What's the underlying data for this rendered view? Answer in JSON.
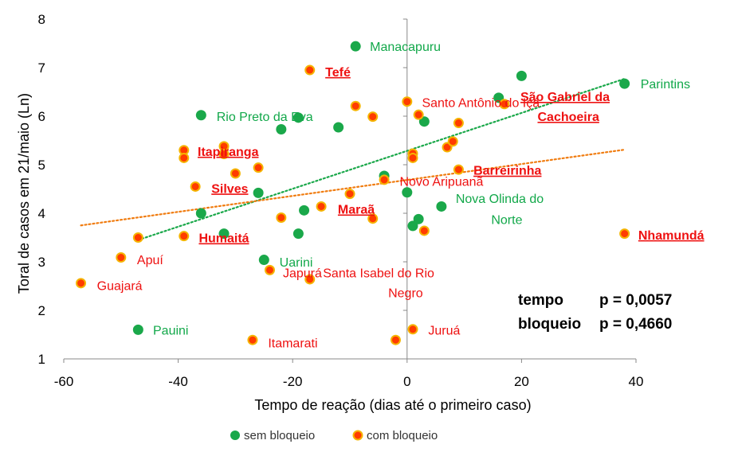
{
  "chart_data": {
    "type": "scatter",
    "xlabel": "Tempo de reação (dias até o primeiro caso)",
    "ylabel": "Toral de casos em  21/maio  (Ln)",
    "xlim": [
      -60,
      40
    ],
    "ylim": [
      1,
      8
    ],
    "x_ticks": [
      "-60",
      "-40",
      "-20",
      "0",
      "20",
      "40"
    ],
    "y_ticks": [
      "1",
      "2",
      "3",
      "4",
      "5",
      "6",
      "7",
      "8"
    ],
    "grid": false,
    "legend_position": "bottom",
    "colors": {
      "sem": "#1aa84a",
      "com_fill": "#ff3c00",
      "com_ring": "#f5b400",
      "trend_sem": "#1aa84a",
      "trend_com": "#f07c10",
      "label_sem": "#12a84a",
      "label_com": "#ee1111"
    },
    "series": [
      {
        "name": "sem bloqueio",
        "x": [
          -47,
          -36,
          -36,
          -32,
          -26,
          -25,
          -22,
          -19,
          -19,
          -18,
          -12,
          -9,
          -4,
          0,
          1,
          2,
          3,
          6,
          16,
          20,
          38
        ],
        "y": [
          1.6,
          6.02,
          4.0,
          3.58,
          4.42,
          3.04,
          5.73,
          5.97,
          3.58,
          4.06,
          5.77,
          7.44,
          4.77,
          4.43,
          3.74,
          3.88,
          5.89,
          4.14,
          6.38,
          6.83,
          6.67
        ]
      },
      {
        "name": "com bloqueio",
        "x": [
          -57,
          -50,
          -47,
          -39,
          -39,
          -39,
          -37,
          -32,
          -32,
          -30,
          -27,
          -26,
          -24,
          -22,
          -17,
          -17,
          -15,
          -10,
          -9,
          -6,
          -6,
          -4,
          -2,
          0,
          1,
          1,
          1,
          2,
          3,
          7,
          8,
          9,
          9,
          17,
          38
        ],
        "y": [
          2.56,
          3.09,
          3.5,
          5.3,
          5.14,
          3.53,
          4.55,
          5.38,
          5.22,
          4.82,
          1.39,
          4.94,
          2.83,
          3.91,
          6.95,
          2.64,
          4.14,
          4.4,
          6.21,
          3.89,
          5.99,
          4.69,
          1.39,
          6.3,
          5.23,
          5.14,
          1.61,
          6.03,
          3.64,
          5.36,
          5.48,
          5.86,
          4.9,
          6.25,
          3.58
        ]
      }
    ],
    "trendlines": [
      {
        "series": "sem bloqueio",
        "x": [
          -47,
          38
        ],
        "y": [
          3.45,
          6.77
        ]
      },
      {
        "series": "com bloqueio",
        "x": [
          -57,
          38
        ],
        "y": [
          3.75,
          5.31
        ]
      }
    ],
    "annotations": [
      {
        "text": "Manacapuru",
        "series": "sem",
        "x": -6.5,
        "y": 7.44,
        "bold": false
      },
      {
        "text": "Parintins",
        "series": "sem",
        "x": 40.8,
        "y": 6.67,
        "bold": false
      },
      {
        "text": "Rio Preto da Eva",
        "series": "sem",
        "x": -33.3,
        "y": 6.0,
        "bold": false
      },
      {
        "text": "Uarini",
        "series": "sem",
        "x": -22.3,
        "y": 3.0,
        "bold": false
      },
      {
        "text": "Nova Olinda do",
        "series": "sem",
        "x": 8.5,
        "y": 4.31,
        "bold": false
      },
      {
        "text": "Norte",
        "series": "sem",
        "x": 14.7,
        "y": 3.88,
        "bold": false
      },
      {
        "text": "Pauini",
        "series": "sem",
        "x": -44.4,
        "y": 1.6,
        "bold": false
      },
      {
        "text": "Tefé",
        "series": "com",
        "x": -14.3,
        "y": 6.92,
        "bold": true
      },
      {
        "text": "Santo Antônio do Içá",
        "series": "com",
        "x": 2.6,
        "y": 6.29,
        "bold": false
      },
      {
        "text": "São Gabriel da",
        "series": "com",
        "x": 19.8,
        "y": 6.41,
        "bold": true
      },
      {
        "text": "Cachoeira",
        "series": "com",
        "x": 22.8,
        "y": 6.0,
        "bold": true
      },
      {
        "text": "Itapiranga",
        "series": "com",
        "x": -36.6,
        "y": 5.28,
        "bold": true
      },
      {
        "text": "Barreirinha",
        "series": "com",
        "x": 11.6,
        "y": 4.89,
        "bold": true
      },
      {
        "text": "Novo Aripuanã",
        "series": "com",
        "x": -1.3,
        "y": 4.66,
        "bold": false
      },
      {
        "text": "Silves",
        "series": "com",
        "x": -34.2,
        "y": 4.52,
        "bold": true
      },
      {
        "text": "Maraã",
        "series": "com",
        "x": -12.1,
        "y": 4.09,
        "bold": true
      },
      {
        "text": "Nhamundá",
        "series": "com",
        "x": 40.4,
        "y": 3.56,
        "bold": true
      },
      {
        "text": "Humaitá",
        "series": "com",
        "x": -36.4,
        "y": 3.5,
        "bold": true
      },
      {
        "text": "Apuí",
        "series": "com",
        "x": -47.2,
        "y": 3.05,
        "bold": false
      },
      {
        "text": "Japurá",
        "series": "com",
        "x": -21.7,
        "y": 2.78,
        "bold": false
      },
      {
        "text": "Santa Isabel do Rio",
        "series": "com",
        "x": -14.7,
        "y": 2.78,
        "bold": false
      },
      {
        "text": "Negro",
        "series": "com",
        "x": -3.3,
        "y": 2.37,
        "bold": false
      },
      {
        "text": "Guajará",
        "series": "com",
        "x": -54.2,
        "y": 2.52,
        "bold": false
      },
      {
        "text": "Juruá",
        "series": "com",
        "x": 3.7,
        "y": 1.6,
        "bold": false
      },
      {
        "text": "Itamarati",
        "series": "com",
        "x": -24.3,
        "y": 1.34,
        "bold": false
      }
    ],
    "stats": [
      {
        "label": "tempo",
        "value": "p = 0,0057"
      },
      {
        "label": "bloqueio",
        "value": "p = 0,4660"
      }
    ]
  }
}
